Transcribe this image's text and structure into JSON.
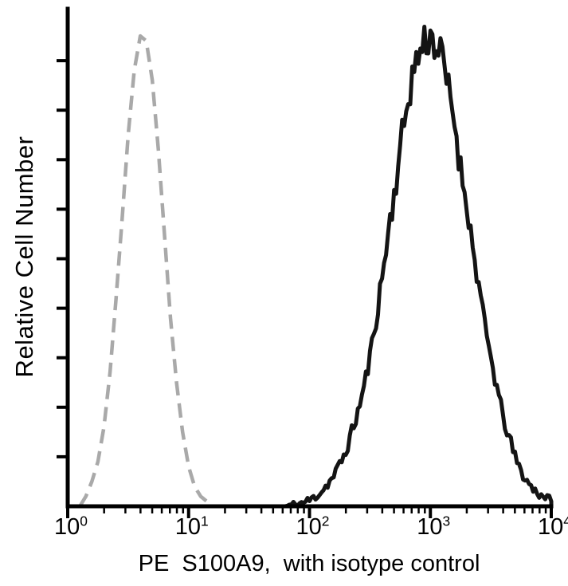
{
  "figure": {
    "background": "#ffffff",
    "axis_color": "#000000"
  },
  "chart_data": {
    "type": "line",
    "subtype": "flow-cytometry-overlay-histogram",
    "title": "",
    "xlabel": "PE  S100A9,  with isotype control",
    "ylabel": "Relative Cell Number",
    "x_scale": "log",
    "xlim": [
      1,
      10000
    ],
    "ylim": [
      0,
      1
    ],
    "grid": false,
    "legend": "none",
    "y_tick_count": 9,
    "x_ticks": [
      {
        "base": "10",
        "exp": "0",
        "value": 1
      },
      {
        "base": "10",
        "exp": "1",
        "value": 10
      },
      {
        "base": "10",
        "exp": "2",
        "value": 100
      },
      {
        "base": "10",
        "exp": "3",
        "value": 1000
      },
      {
        "base": "10",
        "exp": "4",
        "value": 10000
      }
    ],
    "series": [
      {
        "id": "isotype-control",
        "name": "isotype control",
        "style": "dashed",
        "color": "#a9a9a9",
        "stroke_width": 4.5,
        "dash": "18 10",
        "noise": 0,
        "seed": 1,
        "peak_x": 4,
        "points_log10x": [
          [
            0.1,
            0.0
          ],
          [
            0.15,
            0.02
          ],
          [
            0.2,
            0.05
          ],
          [
            0.25,
            0.09
          ],
          [
            0.3,
            0.16
          ],
          [
            0.35,
            0.27
          ],
          [
            0.4,
            0.42
          ],
          [
            0.45,
            0.58
          ],
          [
            0.5,
            0.75
          ],
          [
            0.55,
            0.88
          ],
          [
            0.6,
            0.95
          ],
          [
            0.65,
            0.94
          ],
          [
            0.7,
            0.86
          ],
          [
            0.75,
            0.72
          ],
          [
            0.8,
            0.55
          ],
          [
            0.85,
            0.38
          ],
          [
            0.9,
            0.25
          ],
          [
            0.95,
            0.15
          ],
          [
            1.0,
            0.08
          ],
          [
            1.05,
            0.04
          ],
          [
            1.1,
            0.02
          ],
          [
            1.15,
            0.01
          ],
          [
            1.2,
            0.0
          ]
        ]
      },
      {
        "id": "pe-s100a9",
        "name": "PE S100A9",
        "style": "solid",
        "color": "#141414",
        "stroke_width": 5,
        "dash": "",
        "noise": 0.035,
        "seed": 11,
        "peak_x": 1000,
        "points_log10x": [
          [
            1.8,
            0.0
          ],
          [
            1.85,
            0.002
          ],
          [
            1.9,
            0.004
          ],
          [
            1.95,
            0.008
          ],
          [
            2.0,
            0.012
          ],
          [
            2.05,
            0.02
          ],
          [
            2.1,
            0.03
          ],
          [
            2.15,
            0.045
          ],
          [
            2.2,
            0.06
          ],
          [
            2.25,
            0.085
          ],
          [
            2.3,
            0.11
          ],
          [
            2.35,
            0.15
          ],
          [
            2.4,
            0.19
          ],
          [
            2.45,
            0.24
          ],
          [
            2.5,
            0.3
          ],
          [
            2.55,
            0.38
          ],
          [
            2.6,
            0.46
          ],
          [
            2.65,
            0.55
          ],
          [
            2.7,
            0.63
          ],
          [
            2.75,
            0.72
          ],
          [
            2.8,
            0.8
          ],
          [
            2.85,
            0.87
          ],
          [
            2.9,
            0.91
          ],
          [
            2.95,
            0.94
          ],
          [
            3.0,
            0.95
          ],
          [
            3.05,
            0.93
          ],
          [
            3.1,
            0.9
          ],
          [
            3.15,
            0.84
          ],
          [
            3.2,
            0.78
          ],
          [
            3.25,
            0.68
          ],
          [
            3.3,
            0.62
          ],
          [
            3.35,
            0.52
          ],
          [
            3.4,
            0.45
          ],
          [
            3.45,
            0.36
          ],
          [
            3.5,
            0.3
          ],
          [
            3.55,
            0.24
          ],
          [
            3.6,
            0.18
          ],
          [
            3.65,
            0.14
          ],
          [
            3.7,
            0.1
          ],
          [
            3.75,
            0.07
          ],
          [
            3.8,
            0.05
          ],
          [
            3.85,
            0.035
          ],
          [
            3.9,
            0.025
          ],
          [
            3.95,
            0.02
          ],
          [
            4.0,
            0.01
          ]
        ]
      }
    ]
  }
}
